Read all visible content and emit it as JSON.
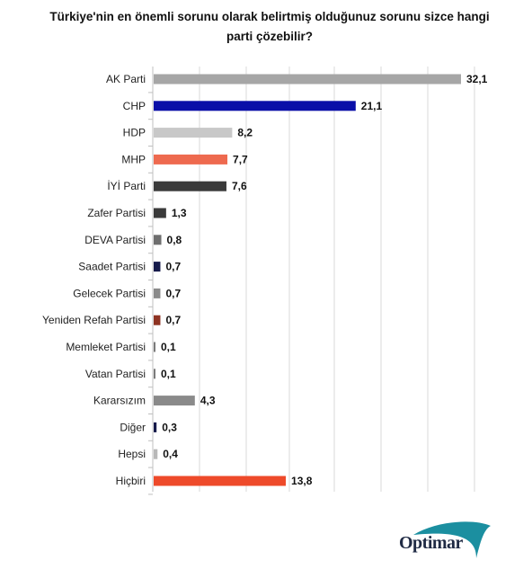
{
  "header": {
    "title_line1": "Türkiye'nin en önemli sorunu olarak belirtmiş olduğunuz sorunu sizce hangi",
    "title_line2": "parti çözebilir?"
  },
  "logo": {
    "text": "Optimar",
    "swoosh_color": "#1b8fa0"
  },
  "chart_data": {
    "type": "bar",
    "orientation": "horizontal",
    "categories": [
      "AK Parti",
      "CHP",
      "HDP",
      "MHP",
      "İYİ Parti",
      "Zafer Partisi",
      "DEVA Partisi",
      "Saadet Partisi",
      "Gelecek Partisi",
      "Yeniden Refah Partisi",
      "Memleket Partisi",
      "Vatan Partisi",
      "Kararsızım",
      "Diğer",
      "Hepsi",
      "Hiçbiri"
    ],
    "values": [
      32.1,
      21.1,
      8.2,
      7.7,
      7.6,
      1.3,
      0.8,
      0.7,
      0.7,
      0.7,
      0.1,
      0.1,
      4.3,
      0.3,
      0.4,
      13.8
    ],
    "value_labels": [
      "32,1",
      "21,1",
      "8,2",
      "7,7",
      "7,6",
      "1,3",
      "0,8",
      "0,7",
      "0,7",
      "0,7",
      "0,1",
      "0,1",
      "4,3",
      "0,3",
      "0,4",
      "13,8"
    ],
    "colors": [
      "#a6a6a6",
      "#0a0fa8",
      "#c8c8c8",
      "#ee6a4f",
      "#3a3a3a",
      "#3a3a3a",
      "#6e6e6e",
      "#151a4a",
      "#8a8a8a",
      "#8e3322",
      "#7a7a7a",
      "#7a7a7a",
      "#8a8a8a",
      "#151a4a",
      "#b8b8b8",
      "#ee4a2a"
    ],
    "xlim": [
      0,
      32.1
    ],
    "grid": true,
    "gridline_color": "#d9d9d9"
  }
}
